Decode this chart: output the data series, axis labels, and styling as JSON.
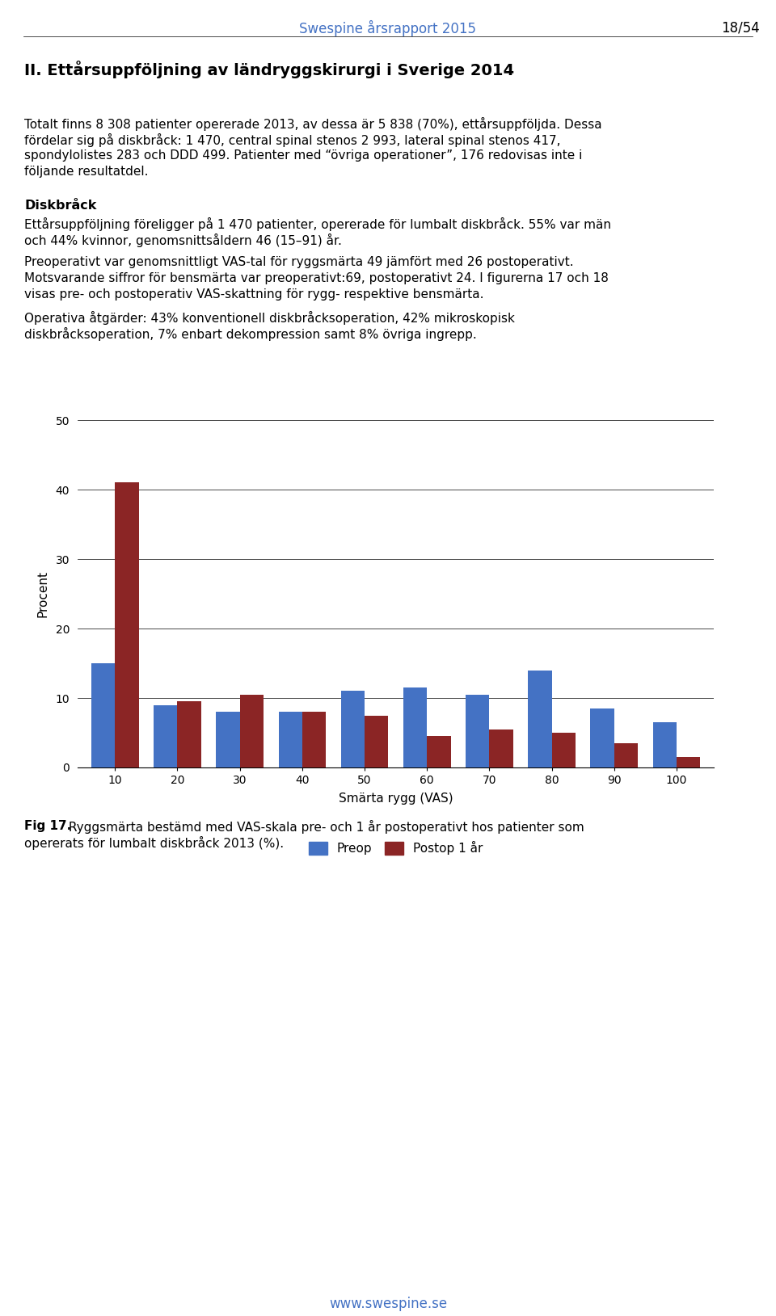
{
  "page_header": "Swespine årsrapport 2015",
  "page_number": "18/54",
  "section_title": "II. Ettårsuppföljning av ländryggskirurgi i Sverige 2014",
  "paragraph1": "Totalt finns 8 308 patienter opererade 2013, av dessa är 5 838 (70%), ettårsuppföljda. Dessa\nfördelar sig på diskbråck: 1 470, central spinal stenos 2 993, lateral spinal stenos 417,\nspondylolistes 283 och DDD 499. Patienter med “övriga operationer”, 176 redovisas inte i\nföljande resultatdel.",
  "subsection": "Diskbråck",
  "paragraph2": "Ettårsuppföljning föreligger på 1 470 patienter, opererade för lumbalt diskbråck. 55% var män\noch 44% kvinnor, genomsnittsåldern 46 (15–91) år.",
  "paragraph3": "Preoperativt var genomsnittligt VAS-tal för ryggsmärta 49 jämfört med 26 postoperativt.\nMotsvarande siffror för bensmärta var preoperativt:69, postoperativt 24. I figurerna 17 och 18\nvisas pre- och postoperativ VAS-skattning för rygg- respektive bensmärta.",
  "paragraph4": "Operativa åtgärder: 43% konventionell diskbråcksoperation, 42% mikroskopisk\ndiskbråcksoperation, 7% enbart dekompression samt 8% övriga ingrepp.",
  "categories": [
    10,
    20,
    30,
    40,
    50,
    60,
    70,
    80,
    90,
    100
  ],
  "preop_values": [
    15,
    9,
    8,
    8,
    11,
    11.5,
    10.5,
    14,
    8.5,
    6.5
  ],
  "postop_values": [
    41,
    9.5,
    10.5,
    8,
    7.5,
    4.5,
    5.5,
    5,
    3.5,
    1.5
  ],
  "preop_color": "#4472C4",
  "postop_color": "#8B2525",
  "xlabel": "Smärta rygg (VAS)",
  "ylabel": "Procent",
  "ylim": [
    0,
    50
  ],
  "yticks": [
    0,
    10,
    20,
    30,
    40,
    50
  ],
  "legend_preop": "Preop",
  "legend_postop": "Postop 1 år",
  "fig_caption_bold": "Fig 17.",
  "fig_caption_normal": " Ryggsmärta bestämd med VAS-skala pre- och 1 år postoperativt hos patienter som\nopererats för lumbalt diskbråck 2013 (%).",
  "footer_url": "www.swespine.se",
  "header_color": "#4472C4",
  "footer_color": "#4472C4"
}
